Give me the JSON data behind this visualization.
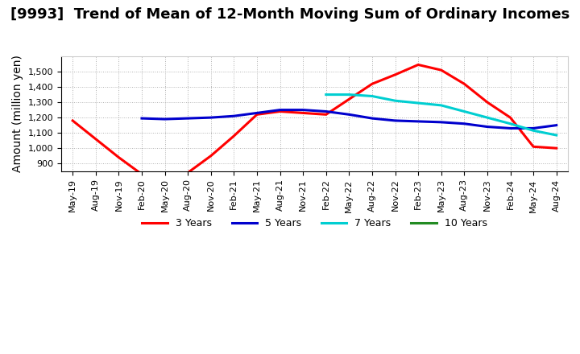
{
  "title": "[9993]  Trend of Mean of 12-Month Moving Sum of Ordinary Incomes",
  "ylabel": "Amount (million yen)",
  "ylim": [
    850,
    1600
  ],
  "yticks": [
    900,
    1000,
    1100,
    1200,
    1300,
    1400,
    1500
  ],
  "background_color": "#ffffff",
  "grid_color": "#aaaaaa",
  "series": {
    "3 Years": {
      "color": "#ff0000",
      "x": [
        "May-19",
        "Aug-19",
        "Nov-19",
        "Feb-20",
        "May-20",
        "Aug-20",
        "Nov-20",
        "Feb-21",
        "May-21",
        "Aug-21",
        "Nov-21",
        "Feb-22",
        "May-22",
        "Aug-22",
        "Nov-22",
        "Feb-23",
        "May-23",
        "Aug-23",
        "Nov-23",
        "Feb-24",
        "May-24",
        "Aug-24"
      ],
      "y": [
        1180,
        1060,
        940,
        830,
        820,
        840,
        950,
        1080,
        1220,
        1240,
        1230,
        1220,
        1320,
        1420,
        1480,
        1545,
        1510,
        1420,
        1300,
        1200,
        1010,
        1000
      ]
    },
    "5 Years": {
      "color": "#0000cd",
      "x": [
        "Feb-20",
        "May-20",
        "Aug-20",
        "Nov-20",
        "Feb-21",
        "May-21",
        "Aug-21",
        "Nov-21",
        "Feb-22",
        "May-22",
        "Aug-22",
        "Nov-22",
        "Feb-23",
        "May-23",
        "Aug-23",
        "Nov-23",
        "Feb-24",
        "May-24",
        "Aug-24"
      ],
      "y": [
        1195,
        1190,
        1195,
        1200,
        1210,
        1230,
        1250,
        1250,
        1240,
        1220,
        1195,
        1180,
        1175,
        1170,
        1160,
        1140,
        1130,
        1130,
        1150
      ]
    },
    "7 Years": {
      "color": "#00ced1",
      "x": [
        "Feb-22",
        "May-22",
        "Aug-22",
        "Nov-22",
        "Feb-23",
        "May-23",
        "Aug-23",
        "Nov-23",
        "Feb-24",
        "May-24",
        "Aug-24"
      ],
      "y": [
        1350,
        1350,
        1340,
        1310,
        1295,
        1280,
        1240,
        1200,
        1160,
        1115,
        1085
      ]
    },
    "10 Years": {
      "color": "#228b22",
      "x": [],
      "y": []
    }
  },
  "legend_entries": [
    "3 Years",
    "5 Years",
    "7 Years",
    "10 Years"
  ],
  "legend_colors": [
    "#ff0000",
    "#0000cd",
    "#00ced1",
    "#228b22"
  ],
  "xtick_labels": [
    "May-19",
    "Aug-19",
    "Nov-19",
    "Feb-20",
    "May-20",
    "Aug-20",
    "Nov-20",
    "Feb-21",
    "May-21",
    "Aug-21",
    "Nov-21",
    "Feb-22",
    "May-22",
    "Aug-22",
    "Nov-22",
    "Feb-23",
    "May-23",
    "Aug-23",
    "Nov-23",
    "Feb-24",
    "May-24",
    "Aug-24"
  ],
  "title_fontsize": 13,
  "axis_label_fontsize": 10,
  "tick_fontsize": 8
}
